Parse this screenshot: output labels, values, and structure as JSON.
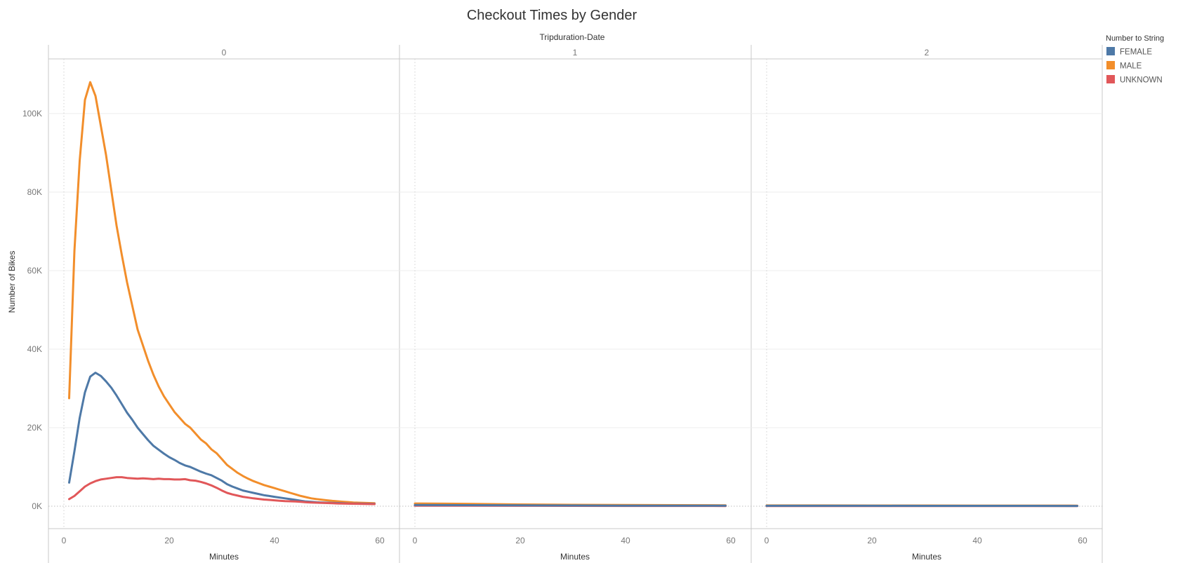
{
  "chart_data": {
    "type": "line",
    "title": "Checkout Times by Gender",
    "facet_header": "Tripduration-Date",
    "facets": [
      "0",
      "1",
      "2"
    ],
    "xlabel": "Minutes",
    "ylabel": "Number of Bikes",
    "xlim": [
      0,
      60
    ],
    "ylim": [
      -5000,
      112000
    ],
    "x_ticks": [
      0,
      20,
      40,
      60
    ],
    "x_tick_labels": [
      "0",
      "20",
      "40",
      "60"
    ],
    "y_ticks": [
      0,
      20000,
      40000,
      60000,
      80000,
      100000
    ],
    "y_tick_labels": [
      "0K",
      "20K",
      "40K",
      "60K",
      "80K",
      "100K"
    ],
    "grid": true,
    "legend": {
      "title": "Number to String",
      "placement": "top-right",
      "items": [
        {
          "label": "FEMALE",
          "color": "#4e79a7"
        },
        {
          "label": "MALE",
          "color": "#f28e2b"
        },
        {
          "label": "UNKNOWN",
          "color": "#e15759"
        }
      ]
    },
    "panels": [
      {
        "facet": "0",
        "series": [
          {
            "label": "MALE",
            "color": "#f28e2b",
            "points": [
              [
                1,
                27500
              ],
              [
                2,
                65000
              ],
              [
                3,
                88000
              ],
              [
                4,
                103500
              ],
              [
                5,
                108000
              ],
              [
                6,
                104500
              ],
              [
                7,
                97000
              ],
              [
                8,
                89500
              ],
              [
                9,
                80500
              ],
              [
                10,
                71500
              ],
              [
                11,
                64000
              ],
              [
                12,
                57000
              ],
              [
                13,
                51000
              ],
              [
                14,
                45000
              ],
              [
                15,
                41000
              ],
              [
                16,
                37000
              ],
              [
                17,
                33500
              ],
              [
                18,
                30500
              ],
              [
                19,
                28000
              ],
              [
                20,
                26000
              ],
              [
                21,
                24000
              ],
              [
                22,
                22500
              ],
              [
                23,
                21000
              ],
              [
                24,
                20000
              ],
              [
                25,
                18500
              ],
              [
                26,
                17000
              ],
              [
                27,
                16000
              ],
              [
                28,
                14500
              ],
              [
                29,
                13500
              ],
              [
                30,
                12000
              ],
              [
                31,
                10500
              ],
              [
                32,
                9500
              ],
              [
                33,
                8500
              ],
              [
                34,
                7700
              ],
              [
                35,
                7000
              ],
              [
                36,
                6400
              ],
              [
                37,
                5900
              ],
              [
                38,
                5400
              ],
              [
                39,
                5000
              ],
              [
                40,
                4600
              ],
              [
                41,
                4200
              ],
              [
                42,
                3800
              ],
              [
                43,
                3400
              ],
              [
                44,
                3000
              ],
              [
                45,
                2600
              ],
              [
                46,
                2300
              ],
              [
                47,
                2000
              ],
              [
                48,
                1800
              ],
              [
                49,
                1650
              ],
              [
                50,
                1500
              ],
              [
                51,
                1350
              ],
              [
                52,
                1250
              ],
              [
                53,
                1150
              ],
              [
                54,
                1050
              ],
              [
                55,
                950
              ],
              [
                56,
                900
              ],
              [
                57,
                850
              ],
              [
                58,
                800
              ],
              [
                59,
                750
              ]
            ]
          },
          {
            "label": "FEMALE",
            "color": "#4e79a7",
            "points": [
              [
                1,
                6000
              ],
              [
                2,
                14000
              ],
              [
                3,
                22500
              ],
              [
                4,
                29000
              ],
              [
                5,
                33000
              ],
              [
                6,
                34000
              ],
              [
                7,
                33200
              ],
              [
                8,
                31800
              ],
              [
                9,
                30200
              ],
              [
                10,
                28200
              ],
              [
                11,
                26000
              ],
              [
                12,
                23800
              ],
              [
                13,
                22000
              ],
              [
                14,
                20000
              ],
              [
                15,
                18400
              ],
              [
                16,
                16800
              ],
              [
                17,
                15400
              ],
              [
                18,
                14400
              ],
              [
                19,
                13400
              ],
              [
                20,
                12500
              ],
              [
                21,
                11800
              ],
              [
                22,
                11000
              ],
              [
                23,
                10400
              ],
              [
                24,
                10000
              ],
              [
                25,
                9400
              ],
              [
                26,
                8800
              ],
              [
                27,
                8300
              ],
              [
                28,
                7900
              ],
              [
                29,
                7200
              ],
              [
                30,
                6500
              ],
              [
                31,
                5600
              ],
              [
                32,
                5000
              ],
              [
                33,
                4500
              ],
              [
                34,
                4000
              ],
              [
                35,
                3700
              ],
              [
                36,
                3400
              ],
              [
                37,
                3100
              ],
              [
                38,
                2800
              ],
              [
                39,
                2600
              ],
              [
                40,
                2400
              ],
              [
                41,
                2200
              ],
              [
                42,
                2000
              ],
              [
                43,
                1800
              ],
              [
                44,
                1600
              ],
              [
                45,
                1400
              ],
              [
                46,
                1200
              ],
              [
                47,
                1100
              ],
              [
                48,
                1000
              ],
              [
                49,
                950
              ],
              [
                50,
                900
              ],
              [
                51,
                850
              ],
              [
                52,
                800
              ],
              [
                53,
                750
              ],
              [
                54,
                700
              ],
              [
                55,
                680
              ],
              [
                56,
                660
              ],
              [
                57,
                640
              ],
              [
                58,
                620
              ],
              [
                59,
                600
              ]
            ]
          },
          {
            "label": "UNKNOWN",
            "color": "#e15759",
            "points": [
              [
                1,
                1800
              ],
              [
                2,
                2600
              ],
              [
                3,
                3800
              ],
              [
                4,
                5000
              ],
              [
                5,
                5800
              ],
              [
                6,
                6400
              ],
              [
                7,
                6800
              ],
              [
                8,
                7000
              ],
              [
                9,
                7200
              ],
              [
                10,
                7400
              ],
              [
                11,
                7400
              ],
              [
                12,
                7200
              ],
              [
                13,
                7100
              ],
              [
                14,
                7000
              ],
              [
                15,
                7100
              ],
              [
                16,
                7000
              ],
              [
                17,
                6900
              ],
              [
                18,
                7000
              ],
              [
                19,
                6900
              ],
              [
                20,
                6900
              ],
              [
                21,
                6800
              ],
              [
                22,
                6800
              ],
              [
                23,
                6900
              ],
              [
                24,
                6600
              ],
              [
                25,
                6500
              ],
              [
                26,
                6200
              ],
              [
                27,
                5800
              ],
              [
                28,
                5300
              ],
              [
                29,
                4700
              ],
              [
                30,
                4000
              ],
              [
                31,
                3400
              ],
              [
                32,
                3000
              ],
              [
                33,
                2700
              ],
              [
                34,
                2400
              ],
              [
                35,
                2200
              ],
              [
                36,
                2000
              ],
              [
                37,
                1850
              ],
              [
                38,
                1700
              ],
              [
                39,
                1600
              ],
              [
                40,
                1500
              ],
              [
                41,
                1400
              ],
              [
                42,
                1300
              ],
              [
                43,
                1250
              ],
              [
                44,
                1200
              ],
              [
                45,
                1100
              ],
              [
                46,
                1000
              ],
              [
                47,
                950
              ],
              [
                48,
                900
              ],
              [
                49,
                850
              ],
              [
                50,
                800
              ],
              [
                51,
                750
              ],
              [
                52,
                700
              ],
              [
                53,
                680
              ],
              [
                54,
                650
              ],
              [
                55,
                620
              ],
              [
                56,
                600
              ],
              [
                57,
                580
              ],
              [
                58,
                560
              ],
              [
                59,
                540
              ]
            ]
          }
        ]
      },
      {
        "facet": "1",
        "series": [
          {
            "label": "MALE",
            "color": "#f28e2b",
            "points": [
              [
                0,
                700
              ],
              [
                10,
                600
              ],
              [
                20,
                450
              ],
              [
                30,
                350
              ],
              [
                40,
                300
              ],
              [
                50,
                260
              ],
              [
                59,
                230
              ]
            ]
          },
          {
            "label": "UNKNOWN",
            "color": "#e15759",
            "points": [
              [
                0,
                150
              ],
              [
                10,
                130
              ],
              [
                20,
                110
              ],
              [
                30,
                90
              ],
              [
                40,
                80
              ],
              [
                50,
                70
              ],
              [
                59,
                60
              ]
            ]
          },
          {
            "label": "FEMALE",
            "color": "#4e79a7",
            "points": [
              [
                0,
                300
              ],
              [
                10,
                260
              ],
              [
                20,
                220
              ],
              [
                30,
                180
              ],
              [
                40,
                150
              ],
              [
                50,
                130
              ],
              [
                59,
                120
              ]
            ]
          }
        ]
      },
      {
        "facet": "2",
        "series": [
          {
            "label": "MALE",
            "color": "#f28e2b",
            "points": [
              [
                0,
                200
              ],
              [
                10,
                190
              ],
              [
                20,
                180
              ],
              [
                30,
                170
              ],
              [
                40,
                160
              ],
              [
                50,
                155
              ],
              [
                59,
                150
              ]
            ]
          },
          {
            "label": "UNKNOWN",
            "color": "#e15759",
            "points": [
              [
                0,
                60
              ],
              [
                10,
                55
              ],
              [
                20,
                50
              ],
              [
                30,
                48
              ],
              [
                40,
                45
              ],
              [
                50,
                42
              ],
              [
                59,
                40
              ]
            ]
          },
          {
            "label": "FEMALE",
            "color": "#4e79a7",
            "points": [
              [
                0,
                110
              ],
              [
                10,
                105
              ],
              [
                20,
                100
              ],
              [
                30,
                95
              ],
              [
                40,
                90
              ],
              [
                50,
                85
              ],
              [
                59,
                80
              ]
            ]
          }
        ]
      }
    ]
  }
}
